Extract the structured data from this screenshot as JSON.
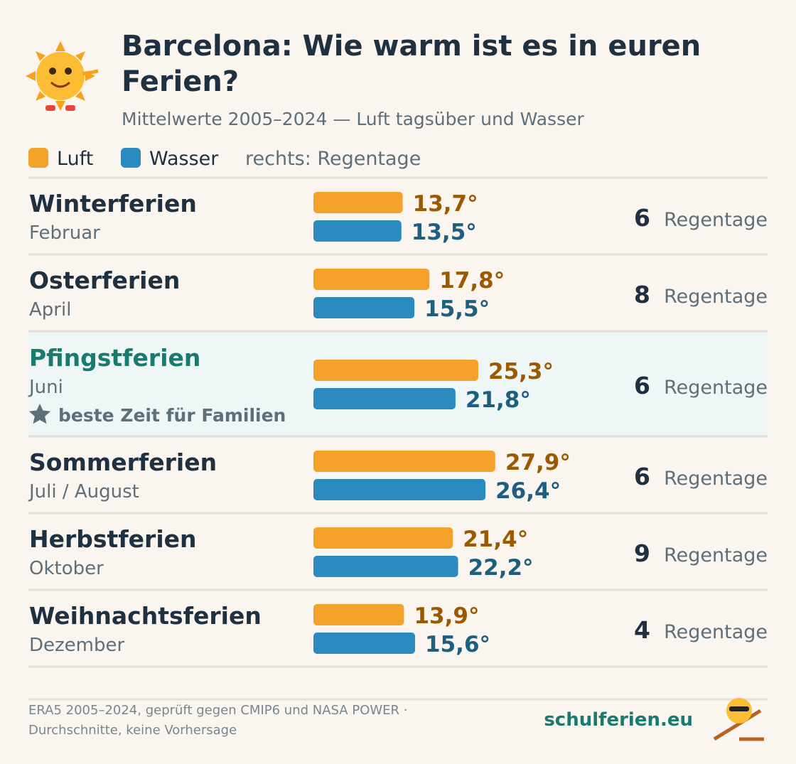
{
  "chart_data": {
    "type": "bar",
    "orientation": "horizontal",
    "title": "Barcelona: Wie warm ist es in euren Ferien?",
    "subtitle": "Mittelwerte 2005–2024 — Luft tagsüber und Wasser",
    "legend_note": "rechts: Regentage",
    "categories": [
      "Winterferien",
      "Osterferien",
      "Pfingstferien",
      "Sommerferien",
      "Herbstferien",
      "Weihnachtsferien"
    ],
    "months": [
      "Februar",
      "April",
      "Juni",
      "Juli / August",
      "Oktober",
      "Dezember"
    ],
    "notes": [
      null,
      null,
      "beste Zeit für Familien",
      null,
      null,
      null
    ],
    "series": [
      {
        "name": "Luft",
        "color": "#f4a22b",
        "label_color": "#9b5a00",
        "values": [
          13.7,
          17.8,
          25.3,
          27.9,
          21.4,
          13.9
        ],
        "value_labels": [
          "13,7°",
          "17,8°",
          "25,3°",
          "27,9°",
          "21,4°",
          "13,9°"
        ]
      },
      {
        "name": "Wasser",
        "color": "#2b8bbf",
        "label_color": "#1e5f80",
        "values": [
          13.5,
          15.5,
          21.8,
          26.4,
          22.2,
          15.6
        ],
        "value_labels": [
          "13,5°",
          "15,5°",
          "21,8°",
          "26,4°",
          "22,2°",
          "15,6°"
        ]
      }
    ],
    "rain_days": [
      6,
      8,
      6,
      6,
      9,
      4
    ],
    "rain_label": "Regentage",
    "footer": [
      "ERA5 2005–2024, geprüft gegen CMIP6 und NASA POWER ·",
      "Durchschnitte, keine Vorhersage"
    ],
    "brand": "schulferien.eu"
  }
}
